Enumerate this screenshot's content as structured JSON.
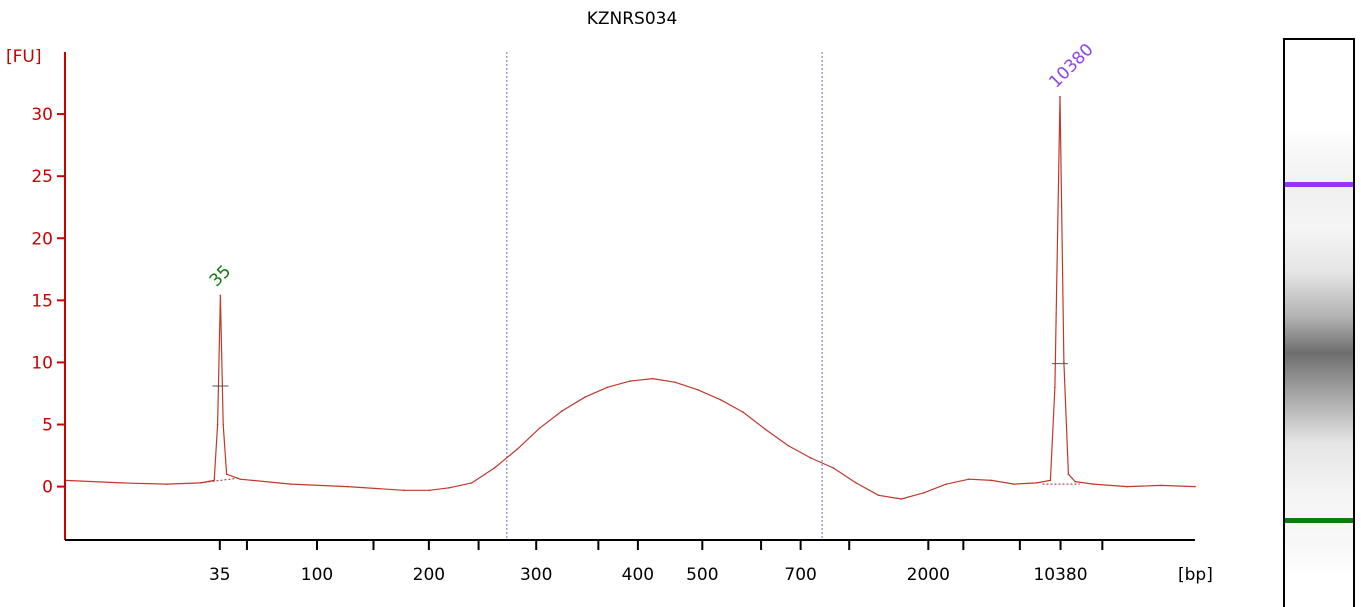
{
  "chart_data": {
    "type": "line",
    "title": "KZNRS034",
    "ylabel": "[FU]",
    "xlabel": "[bp]",
    "ylim": [
      -4.3,
      35
    ],
    "yticks": [
      0,
      5,
      10,
      15,
      20,
      25,
      30
    ],
    "xlim": [
      0,
      1
    ],
    "xtick_labels": [
      {
        "pos": 0.137,
        "label": "35"
      },
      {
        "pos": 0.161,
        "label": ""
      },
      {
        "pos": 0.223,
        "label": "100"
      },
      {
        "pos": 0.273,
        "label": ""
      },
      {
        "pos": 0.322,
        "label": "200"
      },
      {
        "pos": 0.366,
        "label": ""
      },
      {
        "pos": 0.417,
        "label": "300"
      },
      {
        "pos": 0.472,
        "label": ""
      },
      {
        "pos": 0.507,
        "label": "400"
      },
      {
        "pos": 0.564,
        "label": "500"
      },
      {
        "pos": 0.616,
        "label": ""
      },
      {
        "pos": 0.651,
        "label": "700"
      },
      {
        "pos": 0.694,
        "label": ""
      },
      {
        "pos": 0.764,
        "label": "2000"
      },
      {
        "pos": 0.795,
        "label": ""
      },
      {
        "pos": 0.845,
        "label": ""
      },
      {
        "pos": 0.881,
        "label": "10380"
      },
      {
        "pos": 0.918,
        "label": ""
      }
    ],
    "region_markers": [
      0.391,
      0.67
    ],
    "series": [
      {
        "color": "#c0392b",
        "x": [
          0,
          0.05,
          0.09,
          0.12,
          0.132,
          0.135,
          0.1375,
          0.14,
          0.143,
          0.155,
          0.2,
          0.25,
          0.3,
          0.3225,
          0.34,
          0.36,
          0.38,
          0.4,
          0.42,
          0.44,
          0.46,
          0.48,
          0.5,
          0.52,
          0.54,
          0.56,
          0.58,
          0.6,
          0.62,
          0.64,
          0.66,
          0.68,
          0.7,
          0.72,
          0.74,
          0.76,
          0.78,
          0.8,
          0.82,
          0.84,
          0.86,
          0.872,
          0.876,
          0.8805,
          0.884,
          0.888,
          0.894,
          0.91,
          0.94,
          0.97,
          1.0
        ],
        "values": [
          0.5,
          0.3,
          0.2,
          0.3,
          0.5,
          5,
          15.4,
          5,
          1,
          0.6,
          0.2,
          0,
          -0.3,
          -0.3,
          -0.1,
          0.3,
          1.5,
          3,
          4.7,
          6.1,
          7.2,
          8,
          8.5,
          8.7,
          8.4,
          7.8,
          7,
          6,
          4.6,
          3.3,
          2.3,
          1.5,
          0.3,
          -0.7,
          -1,
          -0.5,
          0.2,
          0.6,
          0.5,
          0.2,
          0.3,
          0.5,
          8,
          31.4,
          10,
          1,
          0.4,
          0.2,
          0,
          0.1,
          0
        ]
      }
    ],
    "peaks": [
      {
        "label": "35",
        "x": 0.1375,
        "y": 15.4,
        "color": "#0a7d0a"
      },
      {
        "label": "10380",
        "x": 0.8805,
        "y": 31.4,
        "color": "#8e44ec"
      }
    ],
    "peak_markers": [
      {
        "x": 0.1375,
        "y": 8.1
      },
      {
        "x": 0.8805,
        "y": 9.9
      }
    ],
    "baselines": [
      {
        "x": [
          0.12,
          0.155
        ],
        "y": [
          0.3,
          0.7
        ]
      },
      {
        "x": [
          0.865,
          0.898
        ],
        "y": [
          0.2,
          0.2
        ]
      }
    ]
  },
  "gel": {
    "upper_band_color": "#9b30ff",
    "lower_band_color": "#0a7d0a",
    "upper_band_pos": 0.25,
    "lower_band_pos": 0.84,
    "smear_color": "#6e6e6e"
  }
}
